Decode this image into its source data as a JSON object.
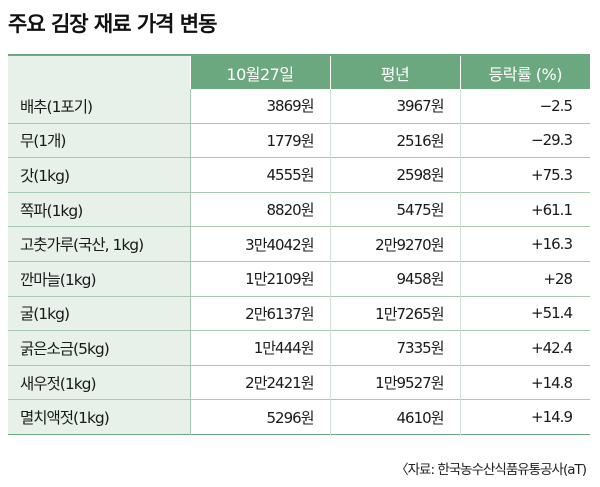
{
  "title": "주요 김장 재료 가격 변동",
  "columns": [
    "",
    "10월27일",
    "평년",
    "등락률 (%)"
  ],
  "rows": [
    {
      "item": "배추(1포기)",
      "oct27": "3869원",
      "avg": "3967원",
      "rate": "−2.5"
    },
    {
      "item": "무(1개)",
      "oct27": "1779원",
      "avg": "2516원",
      "rate": "−29.3"
    },
    {
      "item": "갓(1kg)",
      "oct27": "4555원",
      "avg": "2598원",
      "rate": "+75.3"
    },
    {
      "item": "쪽파(1kg)",
      "oct27": "8820원",
      "avg": "5475원",
      "rate": "+61.1"
    },
    {
      "item": "고춧가루(국산, 1kg)",
      "oct27": "3만4042원",
      "avg": "2만9270원",
      "rate": "+16.3"
    },
    {
      "item": "깐마늘(1kg)",
      "oct27": "1만2109원",
      "avg": "9458원",
      "rate": "+28"
    },
    {
      "item": "굴(1kg)",
      "oct27": "2만6137원",
      "avg": "1만7265원",
      "rate": "+51.4"
    },
    {
      "item": "굵은소금(5kg)",
      "oct27": "1만444원",
      "avg": "7335원",
      "rate": "+42.4"
    },
    {
      "item": "새우젓(1kg)",
      "oct27": "2만2421원",
      "avg": "1만9527원",
      "rate": "+14.8"
    },
    {
      "item": "멸치액젓(1kg)",
      "oct27": "5296원",
      "avg": "4610원",
      "rate": "+14.9"
    }
  ],
  "source": "〈자료: 한국농수산식품유통공사(aT)"
}
